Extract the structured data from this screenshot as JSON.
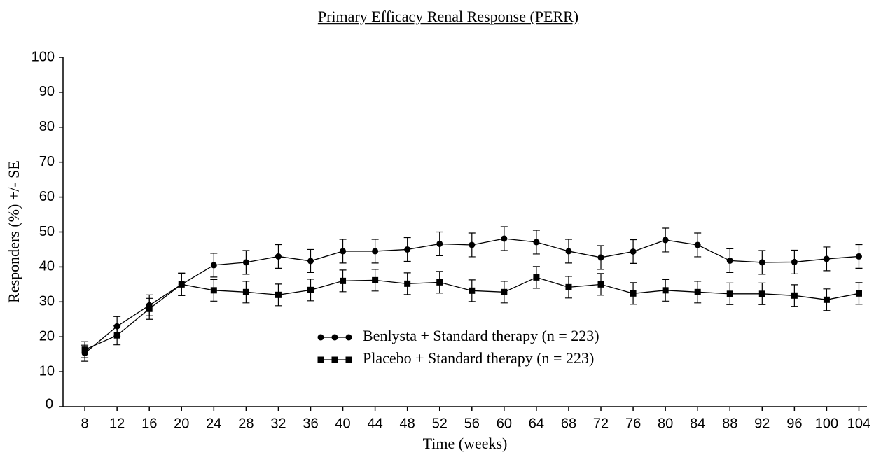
{
  "chart_data": {
    "type": "line",
    "title": "Primary Efficacy Renal Response (PERR)",
    "x_label": "Time (weeks)",
    "y_label": "Responders (%) +/- SE",
    "x": [
      8,
      12,
      16,
      20,
      24,
      28,
      32,
      36,
      40,
      44,
      48,
      52,
      56,
      60,
      64,
      68,
      72,
      76,
      80,
      84,
      88,
      92,
      96,
      100,
      104
    ],
    "series": [
      {
        "name": "Benlysta + Standard therapy (n = 223)",
        "color": "#000000",
        "marker": "circle",
        "values": [
          15.3,
          23,
          29,
          35,
          40.5,
          41.3,
          43,
          41.7,
          44.5,
          44.5,
          45,
          46.6,
          46.3,
          48.1,
          47.1,
          44.5,
          42.7,
          44.4,
          47.7,
          46.3,
          41.8,
          41.3,
          41.4,
          42.3,
          43
        ],
        "errors": [
          2.3,
          2.8,
          3.0,
          3.2,
          3.4,
          3.4,
          3.4,
          3.3,
          3.4,
          3.4,
          3.4,
          3.4,
          3.4,
          3.4,
          3.4,
          3.4,
          3.4,
          3.4,
          3.4,
          3.4,
          3.4,
          3.4,
          3.4,
          3.4,
          3.4
        ]
      },
      {
        "name": "Placebo + Standard therapy (n = 223)",
        "color": "#000000",
        "marker": "square",
        "values": [
          16.3,
          20.4,
          28,
          35,
          33.3,
          32.8,
          32,
          33.4,
          36,
          36.2,
          35.2,
          35.6,
          33.2,
          32.8,
          37,
          34.2,
          35,
          32.4,
          33.3,
          32.8,
          32.3,
          32.3,
          31.8,
          30.6,
          32.4
        ],
        "errors": [
          2.3,
          2.7,
          3.0,
          3.2,
          3.1,
          3.1,
          3.1,
          3.1,
          3.1,
          3.1,
          3.1,
          3.1,
          3.1,
          3.1,
          3.1,
          3.1,
          3.1,
          3.1,
          3.1,
          3.1,
          3.1,
          3.1,
          3.1,
          3.1,
          3.1
        ]
      }
    ],
    "xlim": [
      5.3,
      105
    ],
    "ylim": [
      0,
      100
    ],
    "xticks": [
      8,
      12,
      16,
      20,
      24,
      28,
      32,
      36,
      40,
      44,
      48,
      52,
      56,
      60,
      64,
      68,
      72,
      76,
      80,
      84,
      88,
      92,
      96,
      100,
      104
    ],
    "yticks": [
      0,
      10,
      20,
      30,
      40,
      50,
      60,
      70,
      80,
      90,
      100
    ],
    "grid": false
  }
}
